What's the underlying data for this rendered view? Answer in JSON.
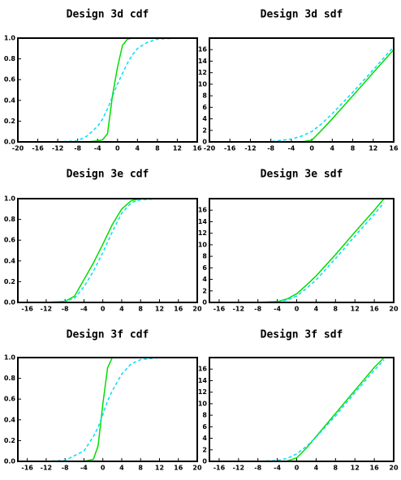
{
  "chart_data": [
    {
      "type": "line",
      "title": "Design 3d  cdf",
      "xlim": [
        -20,
        16
      ],
      "xticks": [
        -20,
        -16,
        -12,
        -8,
        -4,
        0,
        4,
        8,
        12,
        16
      ],
      "ylim": [
        0,
        1
      ],
      "yticks": [
        {
          "value": 0,
          "label": "0.0"
        },
        0.2,
        0.4,
        0.6,
        0.8,
        {
          "value": 1,
          "label": "1.0"
        }
      ],
      "x": [
        -20,
        -16,
        -12,
        -8,
        -6,
        -4,
        -3,
        -2,
        -1,
        0,
        1,
        2,
        3,
        4,
        6,
        8,
        12,
        16
      ],
      "series": [
        {
          "color": "#00dd00",
          "dash": false,
          "values": [
            0,
            0,
            0,
            0,
            0,
            0.01,
            0.02,
            0.08,
            0.45,
            0.72,
            0.93,
            0.99,
            1,
            1,
            1,
            1,
            1,
            1
          ]
        },
        {
          "color": "#00ddff",
          "dash": true,
          "values": [
            0,
            0,
            0,
            0.01,
            0.06,
            0.15,
            0.22,
            0.32,
            0.44,
            0.56,
            0.66,
            0.76,
            0.84,
            0.9,
            0.96,
            0.99,
            1,
            1
          ]
        }
      ]
    },
    {
      "type": "line",
      "title": "Design 3d sdf",
      "xlim": [
        -20,
        16
      ],
      "xticks": [
        -20,
        -16,
        -12,
        -8,
        -4,
        0,
        4,
        8,
        12,
        16
      ],
      "ylim": [
        0,
        18
      ],
      "yticks": [
        0,
        2,
        4,
        6,
        8,
        10,
        12,
        14,
        16
      ],
      "x": [
        -20,
        -16,
        -12,
        -8,
        -4,
        -2,
        0,
        2,
        4,
        8,
        12,
        16
      ],
      "series": [
        {
          "color": "#00dd00",
          "dash": false,
          "values": [
            0,
            0,
            0,
            0,
            0,
            0,
            0.3,
            2.1,
            4,
            8,
            12,
            16
          ]
        },
        {
          "color": "#00ddff",
          "dash": true,
          "values": [
            0,
            0,
            0,
            0.05,
            0.5,
            1,
            1.8,
            3.2,
            4.9,
            8.6,
            12.5,
            16.5
          ]
        }
      ]
    },
    {
      "type": "line",
      "title": "Design 3e  cdf",
      "xlim": [
        -18,
        20
      ],
      "xticks": [
        -16,
        -12,
        -8,
        -4,
        0,
        4,
        8,
        12,
        16,
        20
      ],
      "ylim": [
        0,
        1
      ],
      "yticks": [
        {
          "value": 0,
          "label": "0.0"
        },
        0.2,
        0.4,
        0.6,
        0.8,
        {
          "value": 1,
          "label": "1.0"
        }
      ],
      "x": [
        -18,
        -16,
        -12,
        -8,
        -6,
        -4,
        -2,
        0,
        2,
        4,
        6,
        8,
        12,
        16
      ],
      "series": [
        {
          "color": "#00dd00",
          "dash": false,
          "values": [
            0,
            0,
            0,
            0.01,
            0.06,
            0.22,
            0.38,
            0.56,
            0.75,
            0.9,
            0.98,
            1,
            1,
            1
          ]
        },
        {
          "color": "#00ddff",
          "dash": true,
          "values": [
            0,
            0,
            0,
            0.01,
            0.04,
            0.15,
            0.3,
            0.48,
            0.68,
            0.86,
            0.96,
            0.99,
            1,
            1
          ]
        }
      ]
    },
    {
      "type": "line",
      "title": "Design 3e sdf",
      "xlim": [
        -18,
        20
      ],
      "xticks": [
        -16,
        -12,
        -8,
        -4,
        0,
        4,
        8,
        12,
        16,
        20
      ],
      "ylim": [
        0,
        18
      ],
      "yticks": [
        0,
        2,
        4,
        6,
        8,
        10,
        12,
        14,
        16
      ],
      "x": [
        -18,
        -16,
        -12,
        -8,
        -4,
        -2,
        0,
        2,
        4,
        8,
        12,
        16,
        18
      ],
      "series": [
        {
          "color": "#00dd00",
          "dash": false,
          "values": [
            0,
            0,
            0,
            0,
            0.15,
            0.6,
            1.5,
            3,
            4.6,
            8.3,
            12.2,
            16,
            18
          ]
        },
        {
          "color": "#00ddff",
          "dash": true,
          "values": [
            0,
            0,
            0,
            0,
            0.1,
            0.4,
            1.1,
            2.4,
            3.9,
            7.6,
            11.5,
            15.3,
            17.3
          ]
        }
      ]
    },
    {
      "type": "line",
      "title": "Design 3f  cdf",
      "xlim": [
        -18,
        20
      ],
      "xticks": [
        -16,
        -12,
        -8,
        -4,
        0,
        4,
        8,
        12,
        16,
        20
      ],
      "ylim": [
        0,
        1
      ],
      "yticks": [
        {
          "value": 0,
          "label": "0.0"
        },
        0.2,
        0.4,
        0.6,
        0.8,
        {
          "value": 1,
          "label": "1.0"
        }
      ],
      "x": [
        -18,
        -16,
        -12,
        -8,
        -4,
        -2,
        -1,
        0,
        1,
        2,
        4,
        6,
        8,
        12,
        16
      ],
      "series": [
        {
          "color": "#00dd00",
          "dash": false,
          "values": [
            0,
            0,
            0,
            0,
            0,
            0.02,
            0.15,
            0.55,
            0.9,
            1,
            1,
            1,
            1,
            1,
            1
          ]
        },
        {
          "color": "#00ddff",
          "dash": true,
          "values": [
            0,
            0,
            0,
            0.01,
            0.1,
            0.24,
            0.33,
            0.45,
            0.58,
            0.68,
            0.84,
            0.94,
            0.98,
            1,
            1
          ]
        }
      ]
    },
    {
      "type": "line",
      "title": "Design 3f sdf",
      "xlim": [
        -18,
        20
      ],
      "xticks": [
        -16,
        -12,
        -8,
        -4,
        0,
        4,
        8,
        12,
        16,
        20
      ],
      "ylim": [
        0,
        18
      ],
      "yticks": [
        0,
        2,
        4,
        6,
        8,
        10,
        12,
        14,
        16
      ],
      "x": [
        -18,
        -16,
        -12,
        -8,
        -4,
        -2,
        0,
        2,
        4,
        8,
        12,
        16,
        18
      ],
      "series": [
        {
          "color": "#00dd00",
          "dash": false,
          "values": [
            0,
            0,
            0,
            0,
            0,
            0.05,
            0.6,
            2.3,
            4.3,
            8.3,
            12.3,
            16.3,
            18
          ]
        },
        {
          "color": "#00ddff",
          "dash": true,
          "values": [
            0,
            0,
            0,
            0,
            0.15,
            0.5,
            1.3,
            2.6,
            4.2,
            7.9,
            11.9,
            15.8,
            17.6
          ]
        }
      ]
    }
  ]
}
